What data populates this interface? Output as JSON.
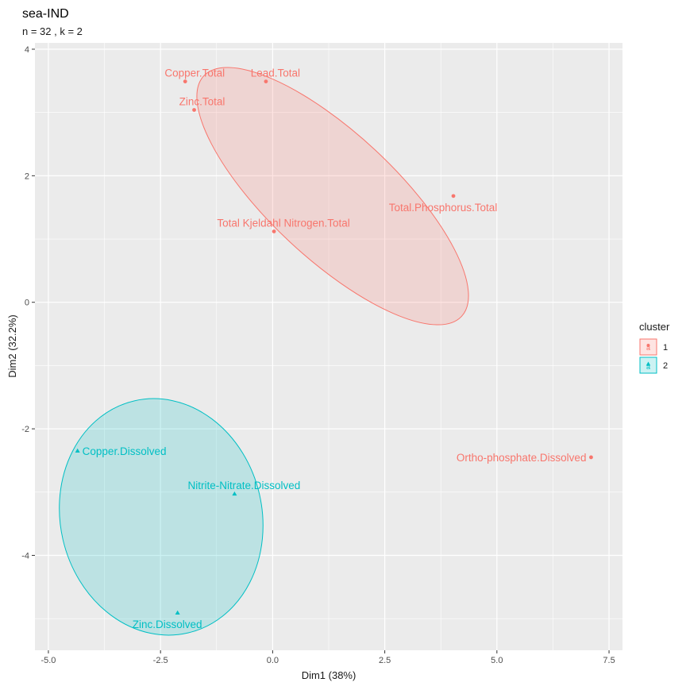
{
  "chart_data": {
    "type": "scatter",
    "title": "sea-IND",
    "subtitle": "n = 32 , k =  2",
    "xlabel": "Dim1 (38%)",
    "ylabel": "Dim2 (32.2%)",
    "xlim": [
      -5.3,
      7.8
    ],
    "ylim": [
      -5.5,
      4.1
    ],
    "xticks": [
      -5.0,
      -2.5,
      0.0,
      2.5,
      5.0,
      7.5
    ],
    "xtick_labels": [
      "-5.0",
      "-2.5",
      "0.0",
      "2.5",
      "5.0",
      "7.5"
    ],
    "yticks": [
      -4,
      -2,
      0,
      2,
      4
    ],
    "ytick_labels": [
      "-4",
      "-2",
      "0",
      "2",
      "4"
    ],
    "grid": true,
    "legend": {
      "title": "cluster",
      "placement": "right",
      "entries": [
        {
          "label": "1",
          "color": "#F8766D"
        },
        {
          "label": "2",
          "color": "#00BFC4"
        }
      ]
    },
    "colors": {
      "cluster1": "#F8766D",
      "cluster2": "#00BFC4",
      "panel": "#EBEBEB",
      "grid": "#FFFFFF"
    },
    "points": [
      {
        "label": "Copper.Total",
        "x": -1.95,
        "y": 3.49,
        "cluster": "1"
      },
      {
        "label": "Lead.Total",
        "x": -0.15,
        "y": 3.49,
        "cluster": "1"
      },
      {
        "label": "Zinc.Total",
        "x": -1.75,
        "y": 3.04,
        "cluster": "1"
      },
      {
        "label": "Total.Phosphorus.Total",
        "x": 4.03,
        "y": 1.68,
        "cluster": "1"
      },
      {
        "label": "Total Kjeldahl Nitrogen.Total",
        "x": 0.03,
        "y": 1.12,
        "cluster": "1"
      },
      {
        "label": "Ortho-phosphate.Dissolved",
        "x": 7.1,
        "y": -2.45,
        "cluster": "1"
      },
      {
        "label": "Copper.Dissolved",
        "x": -4.35,
        "y": -2.35,
        "cluster": "2"
      },
      {
        "label": "Nitrite-Nitrate.Dissolved",
        "x": -0.85,
        "y": -3.03,
        "cluster": "2"
      },
      {
        "label": "Zinc.Dissolved",
        "x": -2.12,
        "y": -4.91,
        "cluster": "2"
      }
    ]
  }
}
